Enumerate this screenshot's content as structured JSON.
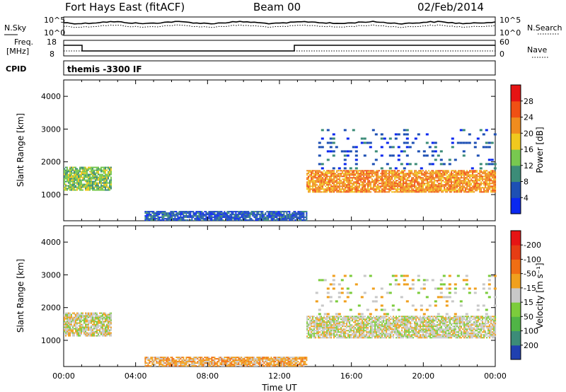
{
  "header": {
    "title": "Fort Hays East (fitACF)",
    "beam": "Beam 00",
    "date": "02/Feb/2014"
  },
  "status_panels": {
    "nsky_label": "N.Sky",
    "nsearch_label": "N.Search",
    "freq_label_1": "Freq.",
    "freq_label_2": "[MHz]",
    "nave_label": "Nave",
    "cpid_label": "CPID",
    "noise_ticks": [
      "10^5",
      "10^0"
    ],
    "noise_ticks_right": [
      "10^5",
      "10^0"
    ],
    "freq_ticks": [
      "18",
      "8"
    ],
    "nave_ticks": [
      "60",
      "0"
    ],
    "cpid_text": "themis -3300 IF"
  },
  "chart_data": [
    {
      "type": "heatmap",
      "title": "",
      "xlabel": "",
      "ylabel": "Slant Range [km]",
      "x_ticks": [
        "00:00",
        "04:00",
        "08:00",
        "12:00",
        "16:00",
        "20:00",
        "00:00"
      ],
      "y_ticks": [
        "1000",
        "2000",
        "3000",
        "4000"
      ],
      "ylim": [
        200,
        4500
      ],
      "colorbar_label": "Power [dB]",
      "colorbar_ticks": [
        "4",
        "8",
        "12",
        "16",
        "20",
        "24",
        "28"
      ],
      "colorbar_colors": [
        "#0a28f0",
        "#1e50b4",
        "#3c8c78",
        "#78c850",
        "#f0c81e",
        "#f08c1e",
        "#f05014",
        "#e61414"
      ],
      "regions": [
        {
          "t_start_h": 0.0,
          "t_end_h": 2.6,
          "r_low_km": 1150,
          "r_high_km": 1850,
          "level": 3
        },
        {
          "t_start_h": 13.5,
          "t_end_h": 24.0,
          "r_low_km": 1100,
          "r_high_km": 1750,
          "level": 5
        },
        {
          "t_start_h": 14.0,
          "t_end_h": 24.0,
          "r_low_km": 1800,
          "r_high_km": 3000,
          "level": 1
        },
        {
          "t_start_h": 4.5,
          "t_end_h": 13.5,
          "r_low_km": 200,
          "r_high_km": 500,
          "level": 1
        }
      ]
    },
    {
      "type": "heatmap",
      "title": "",
      "xlabel": "Time UT",
      "ylabel": "Slant Range [km]",
      "x_ticks": [
        "00:00",
        "04:00",
        "08:00",
        "12:00",
        "16:00",
        "20:00",
        "00:00"
      ],
      "y_ticks": [
        "1000",
        "2000",
        "3000",
        "4000"
      ],
      "ylim": [
        200,
        4500
      ],
      "colorbar_label": "Velocity [m s⁻¹]",
      "colorbar_ticks": [
        "200",
        "100",
        "50",
        "15",
        "-15",
        "-50",
        "-100",
        "-200"
      ],
      "colorbar_colors": [
        "#2040b0",
        "#3c8c78",
        "#50b446",
        "#7ccc3c",
        "#c8c8c8",
        "#f0a01e",
        "#f06e14",
        "#e63c14",
        "#e61414"
      ],
      "regions": [
        {
          "t_start_h": 0.0,
          "t_end_h": 2.6,
          "r_low_km": 1150,
          "r_high_km": 1850,
          "level": 4
        },
        {
          "t_start_h": 13.5,
          "t_end_h": 24.0,
          "r_low_km": 1100,
          "r_high_km": 1750,
          "level": 4
        },
        {
          "t_start_h": 14.0,
          "t_end_h": 24.0,
          "r_low_km": 1800,
          "r_high_km": 3000,
          "level": 4
        },
        {
          "t_start_h": 4.5,
          "t_end_h": 13.5,
          "r_low_km": 200,
          "r_high_km": 500,
          "level": 5
        }
      ]
    }
  ]
}
